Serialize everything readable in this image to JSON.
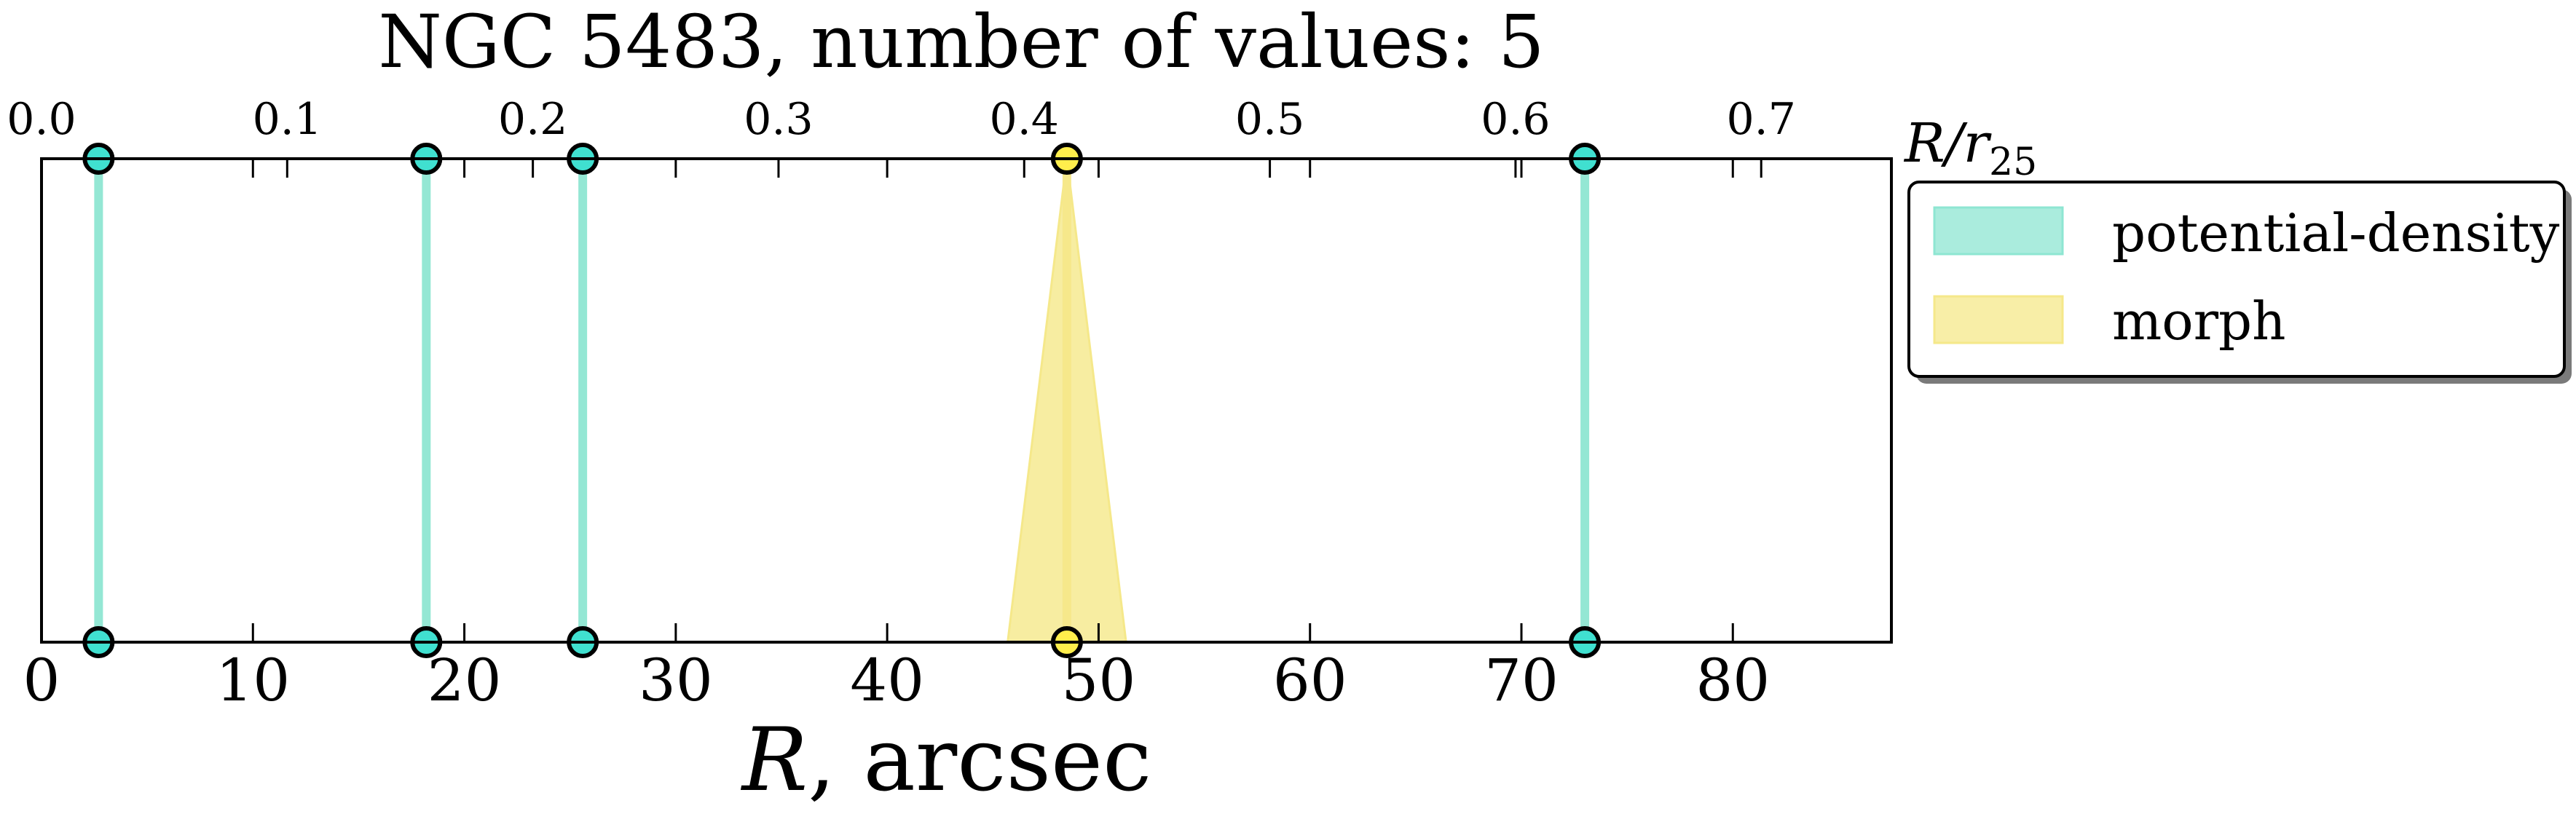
{
  "chart_data": {
    "type": "line",
    "title": "NGC 5483, number of values: 5",
    "xlabel": "R, arcsec",
    "xlabel_main": "R",
    "xlabel_rest": ", arcsec",
    "x2label_main": "R/r",
    "x2label_sub": "25",
    "xlim": [
      0,
      87.5
    ],
    "x2lim": [
      0,
      0.753
    ],
    "x_ticks": [
      0,
      10,
      20,
      30,
      40,
      50,
      60,
      70,
      80
    ],
    "x_tick_labels": [
      "0",
      "10",
      "20",
      "30",
      "40",
      "50",
      "60",
      "70",
      "80"
    ],
    "x2_ticks": [
      0.0,
      0.1,
      0.2,
      0.3,
      0.4,
      0.5,
      0.6,
      0.7
    ],
    "x2_tick_labels": [
      "0.0",
      "0.1",
      "0.2",
      "0.3",
      "0.4",
      "0.5",
      "0.6",
      "0.7"
    ],
    "grid": false,
    "legend_position": "right, outside axes",
    "series": [
      {
        "name": "potential-density",
        "color": "#8ee6d2",
        "marker_color": "#40e0d0",
        "type": "vertical-lines",
        "x": [
          2.7,
          18.2,
          25.6,
          73.0
        ],
        "err": [
          0,
          0,
          0,
          0
        ]
      },
      {
        "name": "morph",
        "color": "#f5e88a",
        "marker_color": "#ffee4c",
        "type": "vertical-lines-with-spread",
        "x": [
          48.5
        ],
        "err": [
          2.8
        ]
      }
    ]
  }
}
